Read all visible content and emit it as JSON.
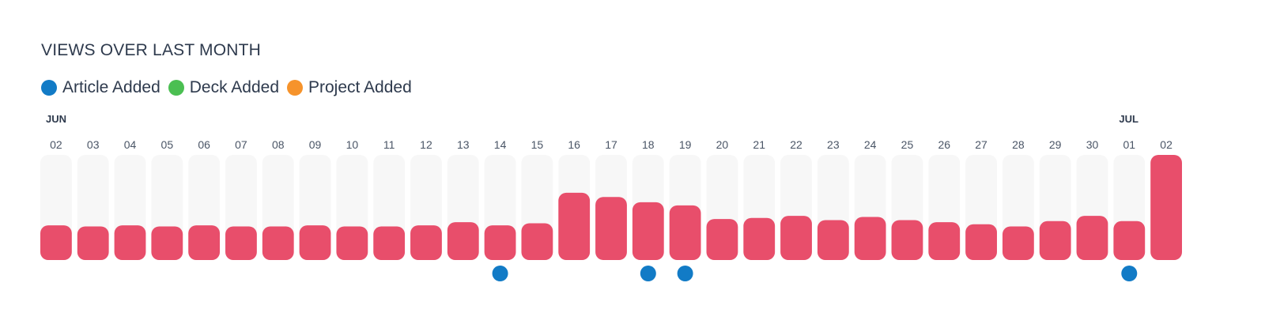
{
  "title": "VIEWS OVER LAST MONTH",
  "legend": [
    {
      "label": "Article Added",
      "color": "#127bc6"
    },
    {
      "label": "Deck Added",
      "color": "#4bbf52"
    },
    {
      "label": "Project Added",
      "color": "#f6932b"
    }
  ],
  "colors": {
    "bar": "#e84e6b",
    "track": "#f7f7f7"
  },
  "chart_data": {
    "type": "bar",
    "title": "VIEWS OVER LAST MONTH",
    "month_labels": [
      {
        "label": "JUN",
        "at": "02"
      },
      {
        "label": "JUL",
        "at": "01"
      }
    ],
    "categories": [
      "02",
      "03",
      "04",
      "05",
      "06",
      "07",
      "08",
      "09",
      "10",
      "11",
      "12",
      "13",
      "14",
      "15",
      "16",
      "17",
      "18",
      "19",
      "20",
      "21",
      "22",
      "23",
      "24",
      "25",
      "26",
      "27",
      "28",
      "29",
      "30",
      "01",
      "02"
    ],
    "values": [
      0.33,
      0.32,
      0.33,
      0.32,
      0.33,
      0.32,
      0.32,
      0.33,
      0.32,
      0.32,
      0.33,
      0.36,
      0.33,
      0.35,
      0.64,
      0.6,
      0.55,
      0.52,
      0.39,
      0.4,
      0.42,
      0.38,
      0.41,
      0.38,
      0.36,
      0.34,
      0.32,
      0.37,
      0.42,
      0.37,
      1.0
    ],
    "ylim": [
      0,
      1
    ],
    "grid": false,
    "legend_position": "top-left",
    "events": [
      {
        "date": "14",
        "type": "Article Added"
      },
      {
        "date": "18",
        "type": "Article Added"
      },
      {
        "date": "19",
        "type": "Article Added"
      },
      {
        "date": "01",
        "type": "Article Added"
      }
    ]
  }
}
